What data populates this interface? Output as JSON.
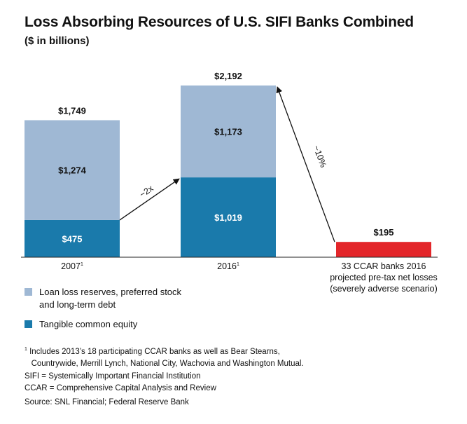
{
  "chart_data": {
    "type": "bar",
    "title": "Loss Absorbing Resources of U.S. SIFI Banks Combined",
    "subtitle": "($ in billions)",
    "categories": [
      "2007",
      "2016",
      "33 CCAR banks 2016 projected pre-tax net losses (severely adverse scenario)"
    ],
    "category_labels": [
      {
        "text": "2007",
        "sup": "1"
      },
      {
        "text": "2016",
        "sup": "1"
      },
      {
        "lines": [
          "33 CCAR banks 2016",
          "projected pre-tax net losses",
          "(severely adverse scenario)"
        ]
      }
    ],
    "series": [
      {
        "name": "Tangible common equity",
        "color": "#1a7aab",
        "values": [
          475,
          1019,
          null
        ],
        "labels": [
          "$475",
          "$1,019",
          null
        ]
      },
      {
        "name": "Loan loss reserves, preferred stock and long-term debt",
        "color": "#9fb8d4",
        "values": [
          1274,
          1173,
          null
        ],
        "labels": [
          "$1,274",
          "$1,173",
          null
        ]
      },
      {
        "name": "",
        "color": "#e3262a",
        "values": [
          null,
          null,
          195
        ],
        "labels": [
          null,
          null,
          null
        ]
      }
    ],
    "totals": [
      1749,
      2192,
      195
    ],
    "total_labels": [
      "$1,749",
      "$2,192",
      "$195"
    ],
    "annotations": [
      {
        "text": "~2x",
        "from_category": 0,
        "to_category": 1
      },
      {
        "text": "~10%",
        "from_category": 2,
        "to_category": 1
      }
    ],
    "ylim": [
      0,
      2400
    ],
    "grid": false,
    "legend_position": "bottom-left"
  },
  "legend": [
    {
      "lines": [
        "Loan loss reserves, preferred stock",
        "and long-term debt"
      ],
      "color": "#9fb8d4"
    },
    {
      "lines": [
        "Tangible common equity"
      ],
      "color": "#1a7aab"
    }
  ],
  "footnotes": [
    {
      "sup": "1",
      "text": " Includes 2013’s 18 participating CCAR banks as well as Bear Stearns,"
    },
    {
      "sup": "",
      "text": "   Countrywide, Merrill Lynch, National City, Wachovia and Washington Mutual."
    },
    {
      "sup": "",
      "text": "SIFI = Systemically Important Financial Institution"
    },
    {
      "sup": "",
      "text": "CCAR = Comprehensive Capital Analysis and Review"
    }
  ],
  "source": "Source: SNL Financial; Federal Reserve Bank"
}
